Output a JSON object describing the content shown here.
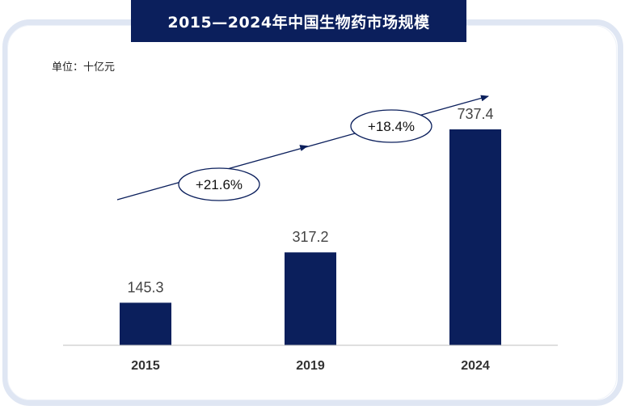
{
  "title": "2015—2024年中国生物药市场规模",
  "unit_label": "单位：十亿元",
  "colors": {
    "bar": "#0b1f5c",
    "title_bg": "#0b1f5c",
    "frame": "#dfe6f3"
  },
  "chart_data": {
    "type": "bar",
    "title": "2015—2024年中国生物药市场规模",
    "categories": [
      "2015",
      "2019",
      "2024"
    ],
    "values": [
      145.3,
      317.2,
      737.4
    ],
    "ylabel": "单位：十亿元",
    "ylim": [
      0,
      800
    ],
    "grid": false,
    "growth_annotations": [
      {
        "label": "+21.6%",
        "from": "2015",
        "to": "2019"
      },
      {
        "label": "+18.4%",
        "from": "2019",
        "to": "2024"
      }
    ]
  }
}
